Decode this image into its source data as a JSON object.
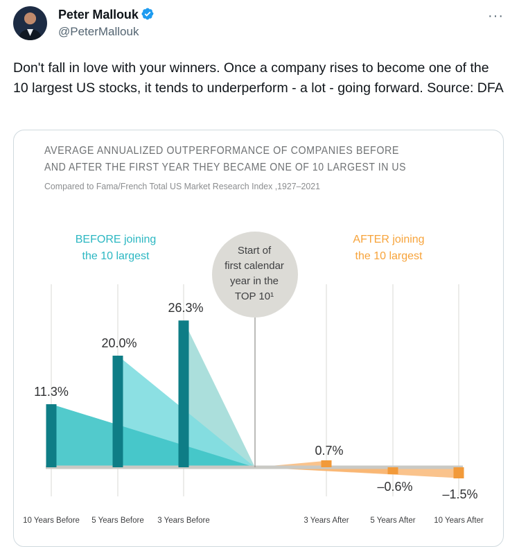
{
  "tweet": {
    "author_name": "Peter Mallouk",
    "handle": "@PeterMallouk",
    "more_label": "···",
    "text": "Don't fall in love with your winners. Once a company rises to become one of the 10 largest US stocks, it tends to underperform - a lot - going forward. Source: DFA",
    "icons": {
      "verified": "verified-badge-icon",
      "more": "more-options-icon"
    }
  },
  "chart_data": {
    "type": "bar",
    "title_line1": "AVERAGE ANNUALIZED OUTPERFORMANCE OF COMPANIES BEFORE",
    "title_line2": "AND AFTER THE FIRST YEAR THEY BECAME ONE OF 10 LARGEST IN US",
    "subtitle": "Compared to Fama/French Total US Market Research Index ,1927–2021",
    "before_label_line1": "BEFORE joining",
    "before_label_line2": "the 10 largest",
    "after_label_line1": "AFTER joining",
    "after_label_line2": "the 10 largest",
    "center_label_lines": [
      "Start of",
      "first calendar",
      "year in the",
      "TOP 10¹"
    ],
    "categories": [
      "10 Years Before",
      "5 Years Before",
      "3 Years Before",
      "3 Years After",
      "5 Years After",
      "10 Years After"
    ],
    "values": [
      11.3,
      20.0,
      26.3,
      0.7,
      -0.6,
      -1.5
    ],
    "value_labels": [
      "11.3%",
      "20.0%",
      "26.3%",
      "0.7%",
      "–0.6%",
      "–1.5%"
    ],
    "units": "%",
    "colors": {
      "before_bar": "#0e7d86",
      "after_bar": "#f29a3a",
      "before_fills": [
        "#3fc4c6",
        "#7fdde0",
        "#a2dcd8"
      ],
      "after_fill": "#f9b46f",
      "title": "#6f7274",
      "before_label": "#2bb7c2",
      "after_label": "#f7a33a",
      "center_circle": "#dcdbd6"
    }
  }
}
